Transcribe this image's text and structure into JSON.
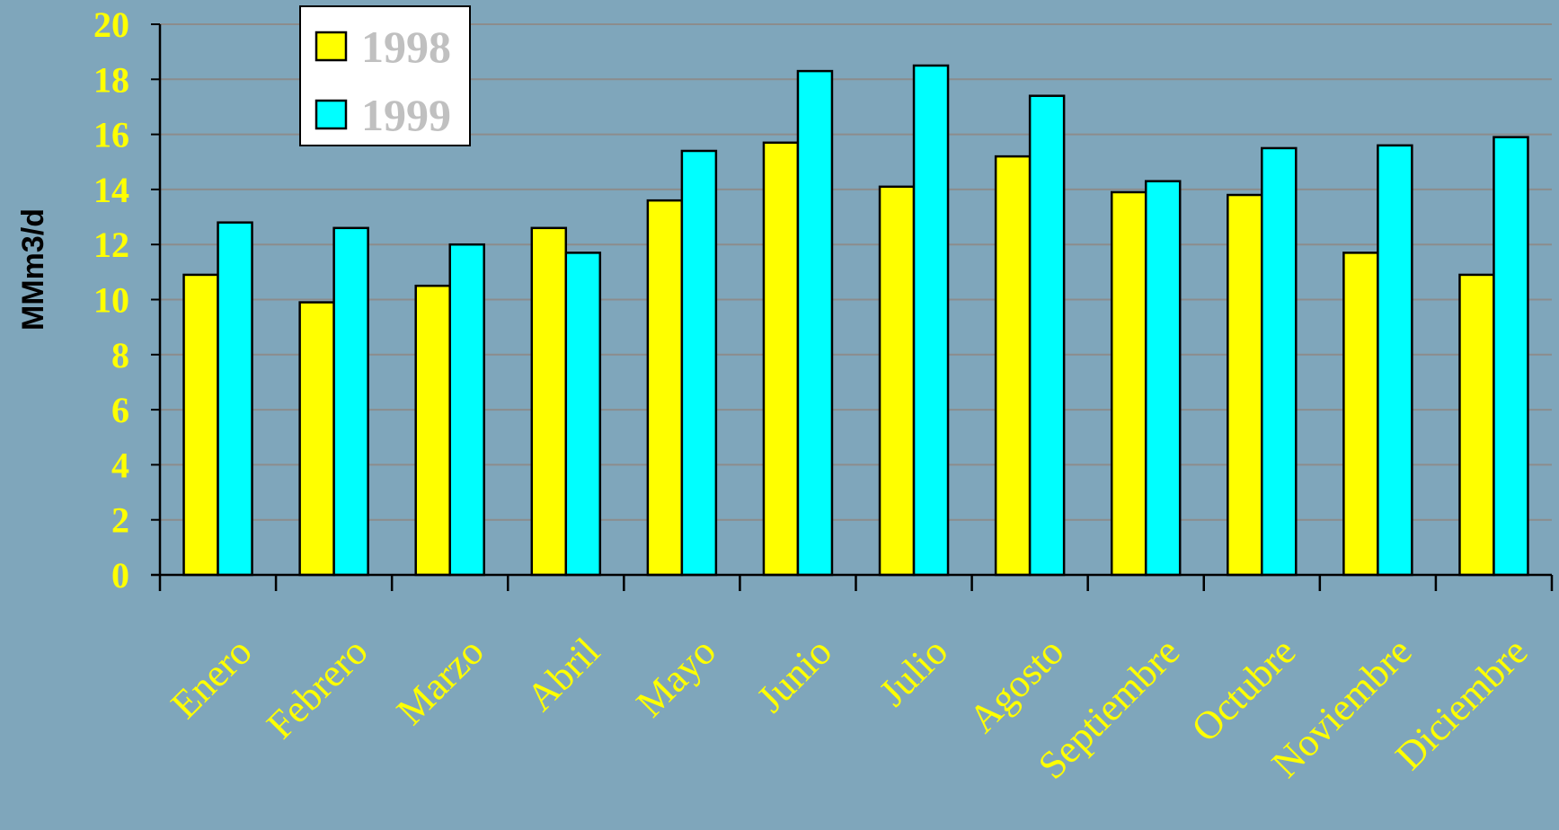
{
  "chart_data": {
    "type": "bar",
    "categories": [
      "Enero",
      "Febrero",
      "Marzo",
      "Abril",
      "Mayo",
      "Junio",
      "Julio",
      "Agosto",
      "Septiembre",
      "Octubre",
      "Noviembre",
      "Diciembre"
    ],
    "series": [
      {
        "name": "1998",
        "color": "#ffff00",
        "values": [
          10.9,
          9.9,
          10.5,
          12.6,
          13.6,
          15.7,
          14.1,
          15.2,
          13.9,
          13.8,
          11.7,
          10.9
        ]
      },
      {
        "name": "1999",
        "color": "#00ffff",
        "values": [
          12.8,
          12.6,
          12.0,
          11.7,
          15.4,
          18.3,
          18.5,
          17.4,
          14.3,
          15.5,
          15.6,
          15.9
        ]
      }
    ],
    "ylabel": "MMm3/d",
    "xlabel": "",
    "ylim": [
      0,
      20
    ],
    "yticks": [
      "0",
      "2",
      "4",
      "6",
      "8",
      "10",
      "12",
      "14",
      "16",
      "18",
      "20"
    ],
    "grid": true,
    "legend": "top-left",
    "colors": {
      "background": "#7fa6bb",
      "tick_labels": "#ffff00",
      "legend_text": "#c0c0c0",
      "gridline": "#8c8c8c",
      "axis": "#000000"
    }
  }
}
